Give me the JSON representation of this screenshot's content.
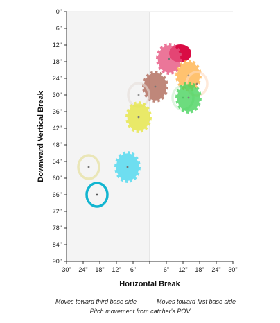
{
  "chart_data": {
    "type": "scatter",
    "xlabel": "Horizontal Break",
    "ylabel": "Downward Vertical Break",
    "xlim": [
      -30,
      30
    ],
    "ylim": [
      0,
      90
    ],
    "x_ticks": [
      -30,
      -24,
      -18,
      -12,
      -6,
      0,
      6,
      12,
      18,
      24,
      30
    ],
    "x_tick_labels": [
      "30\"",
      "24\"",
      "18\"",
      "12\"",
      "6\"",
      "",
      "6\"",
      "12\"",
      "18\"",
      "24\"",
      "30\""
    ],
    "y_ticks": [
      0,
      6,
      12,
      18,
      24,
      30,
      36,
      42,
      48,
      54,
      60,
      66,
      72,
      78,
      84,
      90
    ],
    "y_tick_labels": [
      "0\"",
      "6\"",
      "12\"",
      "18\"",
      "24\"",
      "30\"",
      "36\"",
      "42\"",
      "48\"",
      "54\"",
      "60\"",
      "66\"",
      "72\"",
      "78\"",
      "84\"",
      "90\""
    ],
    "shaded_region": {
      "x": [
        -30,
        0
      ],
      "color": "#f4f4f4"
    },
    "points": [
      {
        "x": 11,
        "y": 15,
        "shape": "ellipse",
        "color": "#d7003a",
        "opacity": 0.95
      },
      {
        "x": 7,
        "y": 17,
        "shape": "gear",
        "color": "#e75480",
        "opacity": 0.8
      },
      {
        "x": 14,
        "y": 23,
        "shape": "gear",
        "color": "#ffae40",
        "opacity": 0.75
      },
      {
        "x": 17,
        "y": 26,
        "shape": "ellipse-outline",
        "color": "#ffdcc0",
        "opacity": 0.6
      },
      {
        "x": 2,
        "y": 27,
        "shape": "gear",
        "color": "#b06a5a",
        "opacity": 0.8
      },
      {
        "x": -4,
        "y": 30,
        "shape": "ellipse-outline",
        "color": "#e6ddd8",
        "opacity": 0.6
      },
      {
        "x": 12,
        "y": 31,
        "shape": "ellipse-outline",
        "color": "#c8efcc",
        "opacity": 0.6
      },
      {
        "x": 14,
        "y": 31,
        "shape": "gear",
        "color": "#3dd153",
        "opacity": 0.75
      },
      {
        "x": -4,
        "y": 38,
        "shape": "gear",
        "color": "#e6e63a",
        "opacity": 0.75
      },
      {
        "x": -22,
        "y": 56,
        "shape": "ellipse-outline",
        "color": "#e8e3a8",
        "opacity": 0.8
      },
      {
        "x": -8,
        "y": 56,
        "shape": "gear",
        "color": "#4dd9f0",
        "opacity": 0.8
      },
      {
        "x": -19,
        "y": 66,
        "shape": "ellipse-outline",
        "color": "#12b5d0",
        "opacity": 1
      }
    ],
    "annotations": {
      "left": "Moves toward third base side",
      "right": "Moves toward first base side",
      "bottom": "Pitch movement from catcher's POV"
    }
  }
}
